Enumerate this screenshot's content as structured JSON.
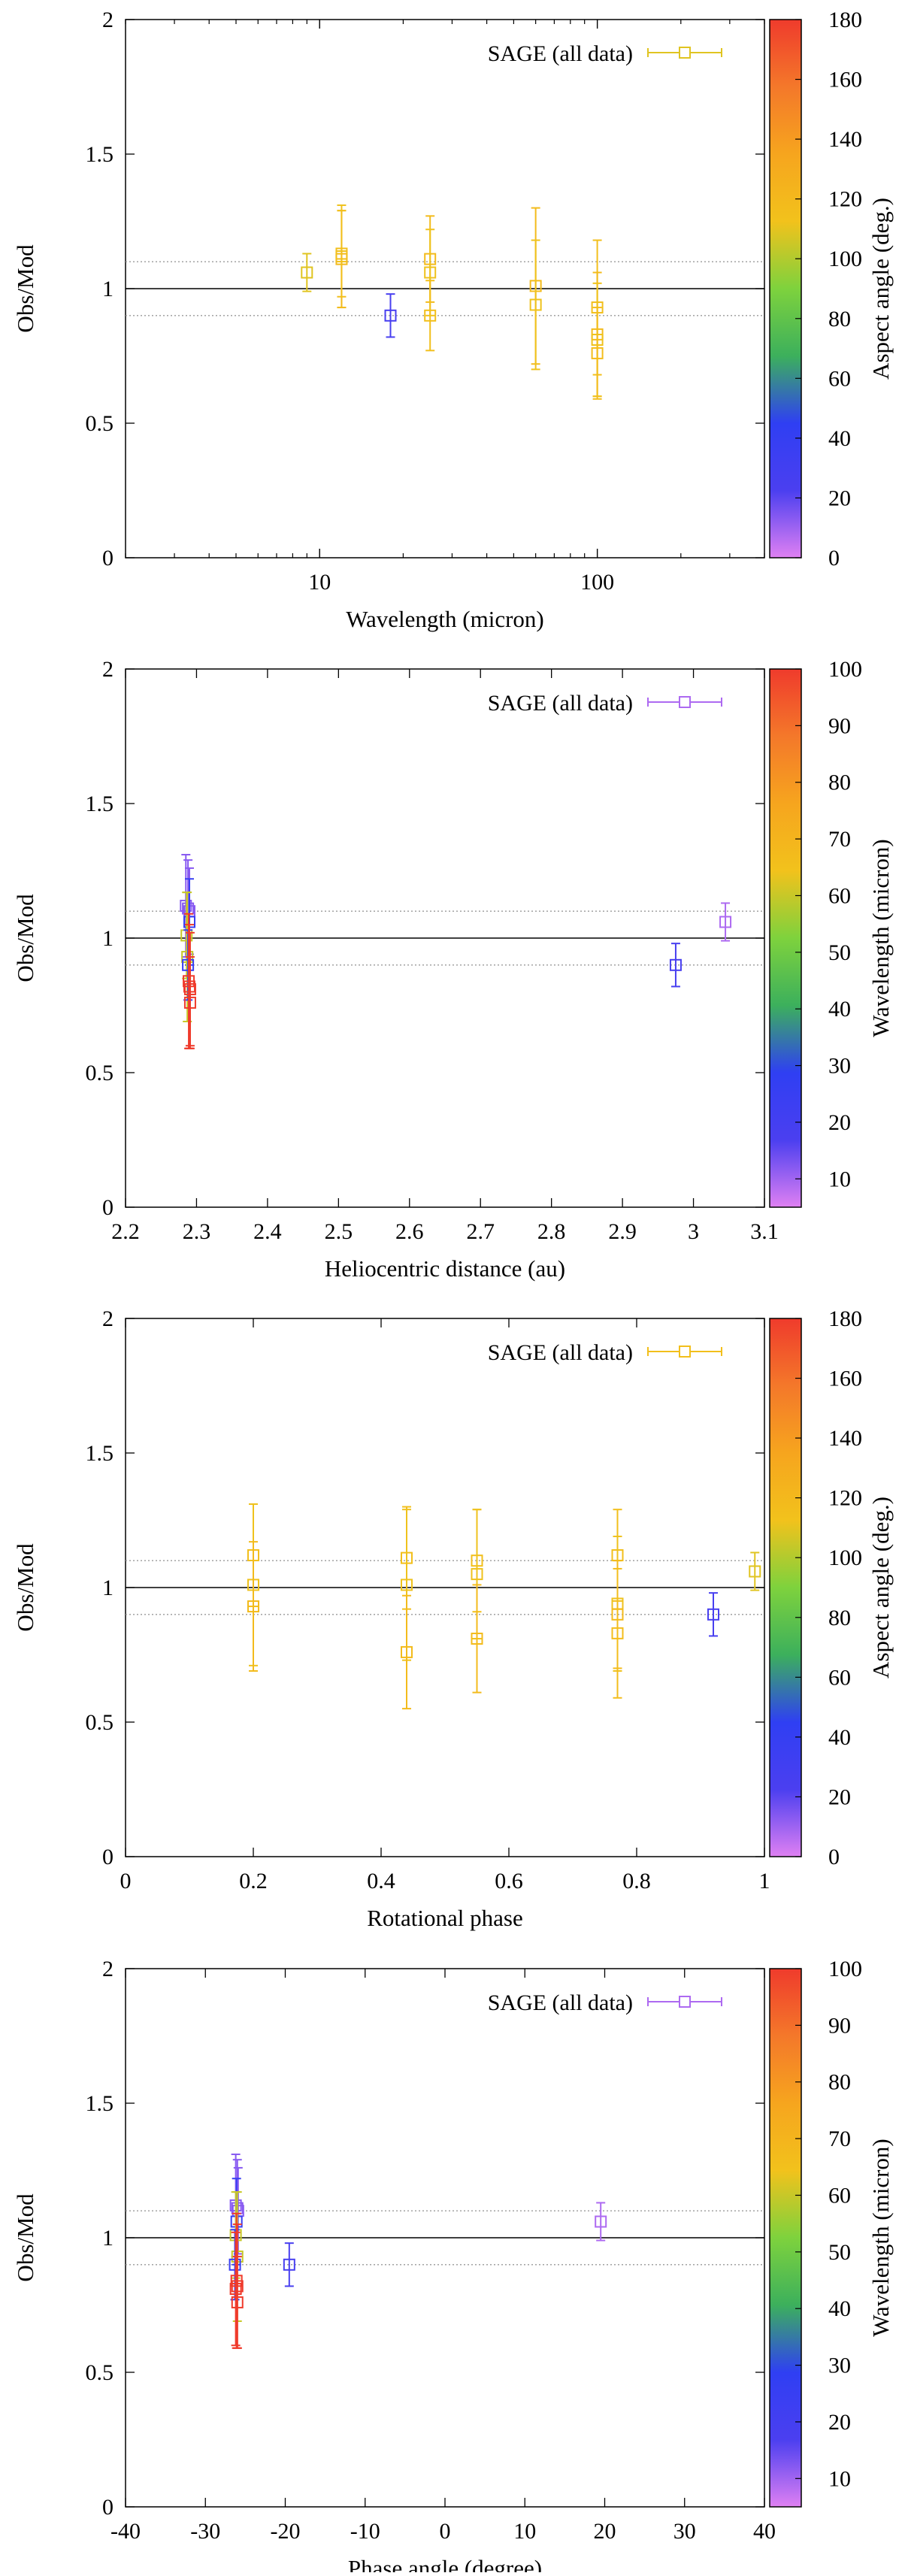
{
  "colors": {
    "colormap": [
      "#df80f2",
      "#4b3ff0",
      "#2f3ff3",
      "#3cb05c",
      "#7ed23d",
      "#f2c21c",
      "#f6a51e",
      "#f4782a",
      "#ef3b2c"
    ],
    "reference_line": "#000000",
    "tolerance_line": "#999999"
  },
  "chart_data": [
    {
      "type": "scatter",
      "xlabel": "Wavelength (micron)",
      "ylabel": "Obs/Mod",
      "xscale": "log",
      "xlim": [
        2,
        400
      ],
      "ylim": [
        0,
        2
      ],
      "xticks": [
        10,
        100
      ],
      "xtick_labels": [
        "10",
        "100"
      ],
      "yticks": [
        0,
        0.5,
        1,
        1.5,
        2
      ],
      "ytick_labels": [
        "0",
        "0.5",
        "1",
        "1.5",
        "2"
      ],
      "reference_lines": [
        1.0,
        0.9,
        1.1
      ],
      "legend": "SAGE (all data)",
      "legend_position": "top-right",
      "colorbar": {
        "label": "Aspect angle (deg.)",
        "min": 0,
        "max": 180,
        "ticks": [
          0,
          20,
          40,
          60,
          80,
          100,
          120,
          140,
          160,
          180
        ]
      },
      "points": [
        {
          "x": 9,
          "y": 1.06,
          "err": 0.07,
          "c": 109
        },
        {
          "x": 12,
          "y": 1.12,
          "err": 0.19,
          "c": 112
        },
        {
          "x": 12,
          "y": 1.11,
          "err": 0.18,
          "c": 118
        },
        {
          "x": 12,
          "y": 1.13,
          "err": 0.16,
          "c": 115
        },
        {
          "x": 18,
          "y": 0.9,
          "err": 0.08,
          "c": 25
        },
        {
          "x": 25,
          "y": 1.11,
          "err": 0.16,
          "c": 118
        },
        {
          "x": 25,
          "y": 1.06,
          "err": 0.16,
          "c": 112
        },
        {
          "x": 25,
          "y": 0.9,
          "err": 0.13,
          "c": 115
        },
        {
          "x": 60,
          "y": 1.01,
          "err": 0.29,
          "c": 118
        },
        {
          "x": 60,
          "y": 0.94,
          "err": 0.24,
          "c": 112
        },
        {
          "x": 100,
          "y": 0.93,
          "err": 0.25,
          "c": 115
        },
        {
          "x": 100,
          "y": 0.83,
          "err": 0.23,
          "c": 118
        },
        {
          "x": 100,
          "y": 0.81,
          "err": 0.21,
          "c": 112
        },
        {
          "x": 100,
          "y": 0.76,
          "err": 0.17,
          "c": 116
        }
      ]
    },
    {
      "type": "scatter",
      "xlabel": "Heliocentric distance (au)",
      "ylabel": "Obs/Mod",
      "xscale": "linear",
      "xlim": [
        2.2,
        3.1
      ],
      "ylim": [
        0,
        2
      ],
      "xticks": [
        2.2,
        2.3,
        2.4,
        2.5,
        2.6,
        2.7,
        2.8,
        2.9,
        3.0,
        3.1
      ],
      "xtick_labels": [
        "2.2",
        "2.3",
        "2.4",
        "2.5",
        "2.6",
        "2.7",
        "2.8",
        "2.9",
        "3",
        "3.1"
      ],
      "yticks": [
        0,
        0.5,
        1,
        1.5,
        2
      ],
      "ytick_labels": [
        "0",
        "0.5",
        "1",
        "1.5",
        "2"
      ],
      "reference_lines": [
        1.0,
        0.9,
        1.1
      ],
      "legend": "SAGE (all data)",
      "legend_position": "top-right",
      "colorbar": {
        "label": "Wavelength (micron)",
        "min": 5,
        "max": 100,
        "ticks": [
          10,
          20,
          30,
          40,
          50,
          60,
          70,
          80,
          90,
          100
        ]
      },
      "points": [
        {
          "x": 3.045,
          "y": 1.06,
          "err": 0.07,
          "c": 9
        },
        {
          "x": 2.975,
          "y": 0.9,
          "err": 0.08,
          "c": 18
        },
        {
          "x": 2.285,
          "y": 1.12,
          "err": 0.19,
          "c": 12
        },
        {
          "x": 2.288,
          "y": 1.11,
          "err": 0.18,
          "c": 12
        },
        {
          "x": 2.29,
          "y": 1.1,
          "err": 0.16,
          "c": 12
        },
        {
          "x": 2.29,
          "y": 1.06,
          "err": 0.16,
          "c": 25
        },
        {
          "x": 2.286,
          "y": 1.01,
          "err": 0.16,
          "c": 60
        },
        {
          "x": 2.287,
          "y": 0.93,
          "err": 0.24,
          "c": 60
        },
        {
          "x": 2.288,
          "y": 0.9,
          "err": 0.13,
          "c": 25
        },
        {
          "x": 2.289,
          "y": 0.84,
          "err": 0.25,
          "c": 100
        },
        {
          "x": 2.29,
          "y": 0.82,
          "err": 0.23,
          "c": 100
        },
        {
          "x": 2.291,
          "y": 0.81,
          "err": 0.21,
          "c": 100
        },
        {
          "x": 2.291,
          "y": 0.76,
          "err": 0.17,
          "c": 100
        }
      ]
    },
    {
      "type": "scatter",
      "xlabel": "Rotational phase",
      "ylabel": "Obs/Mod",
      "xscale": "linear",
      "xlim": [
        0,
        1
      ],
      "ylim": [
        0,
        2
      ],
      "xticks": [
        0,
        0.2,
        0.4,
        0.6,
        0.8,
        1
      ],
      "xtick_labels": [
        "0",
        "0.2",
        "0.4",
        "0.6",
        "0.8",
        "1"
      ],
      "yticks": [
        0,
        0.5,
        1,
        1.5,
        2
      ],
      "ytick_labels": [
        "0",
        "0.5",
        "1",
        "1.5",
        "2"
      ],
      "reference_lines": [
        1.0,
        0.9,
        1.1
      ],
      "legend": "SAGE (all data)",
      "legend_position": "top-right",
      "colorbar": {
        "label": "Aspect angle (deg.)",
        "min": 0,
        "max": 180,
        "ticks": [
          0,
          20,
          40,
          60,
          80,
          100,
          120,
          140,
          160,
          180
        ]
      },
      "points": [
        {
          "x": 0.2,
          "y": 1.12,
          "err": 0.19,
          "c": 115
        },
        {
          "x": 0.2,
          "y": 1.01,
          "err": 0.3,
          "c": 112
        },
        {
          "x": 0.2,
          "y": 0.93,
          "err": 0.24,
          "c": 118
        },
        {
          "x": 0.44,
          "y": 1.11,
          "err": 0.19,
          "c": 115
        },
        {
          "x": 0.44,
          "y": 1.01,
          "err": 0.28,
          "c": 112
        },
        {
          "x": 0.44,
          "y": 0.76,
          "err": 0.21,
          "c": 118
        },
        {
          "x": 0.55,
          "y": 1.1,
          "err": 0.19,
          "c": 115
        },
        {
          "x": 0.55,
          "y": 1.05,
          "err": 0.24,
          "c": 112
        },
        {
          "x": 0.55,
          "y": 0.81,
          "err": 0.2,
          "c": 118
        },
        {
          "x": 0.77,
          "y": 1.12,
          "err": 0.17,
          "c": 115
        },
        {
          "x": 0.77,
          "y": 0.94,
          "err": 0.25,
          "c": 112
        },
        {
          "x": 0.77,
          "y": 0.9,
          "err": 0.2,
          "c": 118
        },
        {
          "x": 0.77,
          "y": 0.83,
          "err": 0.24,
          "c": 116
        },
        {
          "x": 0.92,
          "y": 0.9,
          "err": 0.08,
          "c": 25
        },
        {
          "x": 0.985,
          "y": 1.06,
          "err": 0.07,
          "c": 109
        }
      ]
    },
    {
      "type": "scatter",
      "xlabel": "Phase angle (degree)",
      "ylabel": "Obs/Mod",
      "xscale": "linear",
      "xlim": [
        -40,
        40
      ],
      "ylim": [
        0,
        2
      ],
      "xticks": [
        -40,
        -30,
        -20,
        -10,
        0,
        10,
        20,
        30,
        40
      ],
      "xtick_labels": [
        "-40",
        "-30",
        "-20",
        "-10",
        "0",
        "10",
        "20",
        "30",
        "40"
      ],
      "yticks": [
        0,
        0.5,
        1,
        1.5,
        2
      ],
      "ytick_labels": [
        "0",
        "0.5",
        "1",
        "1.5",
        "2"
      ],
      "reference_lines": [
        1.0,
        0.9,
        1.1
      ],
      "legend": "SAGE (all data)",
      "legend_position": "top-right",
      "colorbar": {
        "label": "Wavelength (micron)",
        "min": 5,
        "max": 100,
        "ticks": [
          10,
          20,
          30,
          40,
          50,
          60,
          70,
          80,
          90,
          100
        ]
      },
      "points": [
        {
          "x": 19.5,
          "y": 1.06,
          "err": 0.07,
          "c": 9
        },
        {
          "x": -19.5,
          "y": 0.9,
          "err": 0.08,
          "c": 18
        },
        {
          "x": -26.2,
          "y": 1.12,
          "err": 0.19,
          "c": 12
        },
        {
          "x": -26.0,
          "y": 1.11,
          "err": 0.18,
          "c": 12
        },
        {
          "x": -25.9,
          "y": 1.1,
          "err": 0.16,
          "c": 12
        },
        {
          "x": -26.1,
          "y": 1.06,
          "err": 0.16,
          "c": 25
        },
        {
          "x": -26.2,
          "y": 1.01,
          "err": 0.16,
          "c": 60
        },
        {
          "x": -26.0,
          "y": 0.93,
          "err": 0.24,
          "c": 60
        },
        {
          "x": -26.3,
          "y": 0.9,
          "err": 0.13,
          "c": 25
        },
        {
          "x": -26.1,
          "y": 0.84,
          "err": 0.25,
          "c": 100
        },
        {
          "x": -26.0,
          "y": 0.82,
          "err": 0.23,
          "c": 100
        },
        {
          "x": -26.2,
          "y": 0.81,
          "err": 0.21,
          "c": 100
        },
        {
          "x": -26.0,
          "y": 0.76,
          "err": 0.17,
          "c": 100
        }
      ]
    }
  ]
}
